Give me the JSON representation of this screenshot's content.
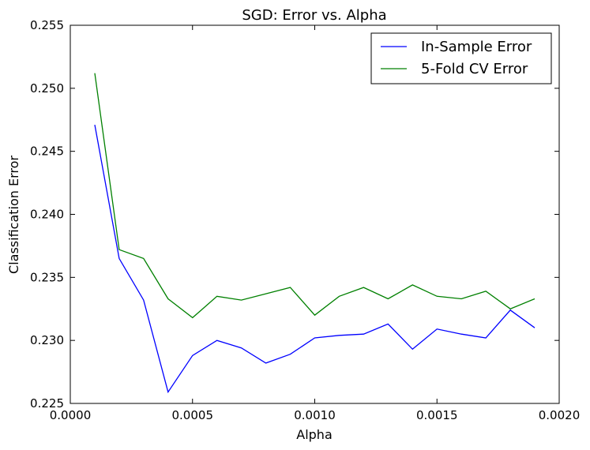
{
  "chart_data": {
    "type": "line",
    "title": "SGD: Error vs. Alpha",
    "xlabel": "Alpha",
    "ylabel": "Classification Error",
    "xlim": [
      0.0,
      0.002
    ],
    "ylim": [
      0.225,
      0.255
    ],
    "xticks": [
      0.0,
      0.0005,
      0.001,
      0.0015,
      0.002
    ],
    "xtick_labels": [
      "0.0000",
      "0.0005",
      "0.0010",
      "0.0015",
      "0.0020"
    ],
    "yticks": [
      0.225,
      0.23,
      0.235,
      0.24,
      0.245,
      0.25,
      0.255
    ],
    "ytick_labels": [
      "0.225",
      "0.230",
      "0.235",
      "0.240",
      "0.245",
      "0.250",
      "0.255"
    ],
    "grid": false,
    "legend_position": "top-right",
    "x": [
      0.0001,
      0.0002,
      0.0003,
      0.0004,
      0.0005,
      0.0006,
      0.0007,
      0.0008,
      0.0009,
      0.001,
      0.0011,
      0.0012,
      0.0013,
      0.0014,
      0.0015,
      0.0016,
      0.0017,
      0.0018,
      0.0019
    ],
    "series": [
      {
        "name": "In-Sample Error",
        "color": "#0000ff",
        "values": [
          0.2471,
          0.2365,
          0.2332,
          0.2259,
          0.2288,
          0.23,
          0.2294,
          0.2282,
          0.2289,
          0.2302,
          0.2304,
          0.2305,
          0.2313,
          0.2293,
          0.2309,
          0.2305,
          0.2302,
          0.2324,
          0.231
        ]
      },
      {
        "name": "5-Fold CV Error",
        "color": "#008000",
        "values": [
          0.2512,
          0.2372,
          0.2365,
          0.2333,
          0.2318,
          0.2335,
          0.2332,
          0.2337,
          0.2342,
          0.232,
          0.2335,
          0.2342,
          0.2333,
          0.2344,
          0.2335,
          0.2333,
          0.2339,
          0.2325,
          0.2333
        ]
      }
    ]
  }
}
